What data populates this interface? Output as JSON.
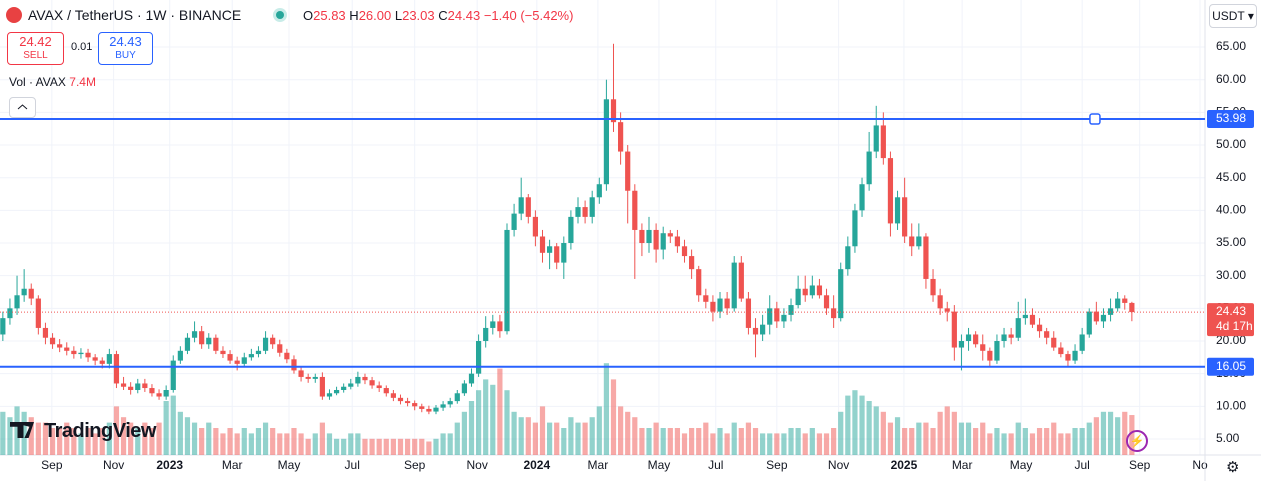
{
  "header": {
    "symbol": "AVAX / TetherUS · 1W · BINANCE",
    "ohlc": [
      {
        "label": "O",
        "value": "25.83"
      },
      {
        "label": "H",
        "value": "26.00"
      },
      {
        "label": "L",
        "value": "23.03"
      },
      {
        "label": "C",
        "value": "24.43"
      }
    ],
    "change": "−1.40 (−5.42%)"
  },
  "trade_panel": {
    "sell_price": "24.42",
    "sell": "SELL",
    "spread": "0.01",
    "buy_price": "24.43",
    "buy": "BUY"
  },
  "currency": "USDT",
  "watermark": "TradingView",
  "chart_data": {
    "type": "candlestick",
    "up_color": "#26a69a",
    "down_color": "#ef5350",
    "volume_legend": {
      "title": "Vol · AVAX",
      "value": "7.4M"
    },
    "open": [
      21,
      23.5,
      25,
      27,
      28,
      26.5,
      22,
      20.5,
      19.5,
      19,
      18.5,
      18,
      18.2,
      17.5,
      17,
      16.5,
      18,
      13.5,
      13,
      12.5,
      13.5,
      12.8,
      12,
      11.5,
      12.5,
      17,
      18.5,
      20.5,
      21.5,
      19.5,
      20.5,
      18.5,
      18,
      17,
      16.5,
      17.5,
      18,
      18.5,
      20.5,
      19.5,
      18.2,
      17.2,
      15.5,
      14.5,
      14.2,
      14.5,
      11.5,
      12,
      12.5,
      13,
      13.5,
      14.5,
      14,
      13.2,
      12.8,
      12,
      11.3,
      10.8,
      10.5,
      10,
      9.6,
      9.2,
      9.8,
      10.3,
      10.8,
      12,
      13.5,
      15,
      20,
      22,
      23,
      21.5,
      37,
      39.5,
      42,
      39,
      36,
      33.5,
      34.5,
      32,
      35,
      39,
      40.5,
      39,
      42,
      44,
      57,
      53.5,
      49,
      43,
      37,
      35,
      37,
      34,
      36.5,
      36,
      34.5,
      33,
      31,
      27,
      26,
      24.5,
      26.5,
      25,
      32,
      26.5,
      22,
      21,
      22.5,
      25,
      23,
      24,
      25.5,
      28,
      27,
      28.5,
      27,
      25,
      23.5,
      31,
      34.5,
      40,
      44,
      49,
      53,
      48,
      38,
      42,
      36,
      34.5,
      36,
      29.5,
      27,
      25,
      24.5,
      19,
      20,
      21,
      19.5,
      18.5,
      17,
      20,
      21,
      20.5,
      23.5,
      24,
      22.5,
      21.5,
      20.5,
      19,
      18,
      17,
      18.5,
      21,
      24.5,
      23,
      24,
      25,
      26.5,
      25.83
    ],
    "high": [
      24.5,
      26.5,
      30,
      31,
      28.8,
      27,
      22.8,
      21.2,
      20.3,
      19.8,
      19.2,
      18.9,
      18.8,
      18,
      17.5,
      18.8,
      18.5,
      14.5,
      13.7,
      14.2,
      14.2,
      13.4,
      12.6,
      13.2,
      17.8,
      19.2,
      21.2,
      23,
      22.3,
      21.2,
      21,
      19.2,
      18.6,
      17.6,
      18.2,
      18.8,
      19.2,
      21.5,
      21,
      20.2,
      18.8,
      17.8,
      16,
      15,
      15,
      15.2,
      12.6,
      13,
      13.5,
      14.2,
      15.3,
      15,
      14.5,
      13.8,
      13.2,
      12.5,
      11.8,
      11.3,
      10.9,
      10.4,
      10.1,
      10.2,
      10.8,
      11.3,
      12.5,
      14,
      15.8,
      21,
      23.8,
      24,
      24,
      38,
      41,
      45,
      42.5,
      40,
      37,
      35.5,
      35,
      36,
      40,
      42,
      41.5,
      43,
      45,
      60,
      65.5,
      55,
      50,
      44,
      38,
      39,
      38,
      37.5,
      37,
      37,
      35.5,
      34,
      31.5,
      28,
      27,
      27.5,
      27.5,
      33,
      33,
      27.5,
      23.5,
      24,
      27,
      26,
      25,
      26.5,
      30,
      30,
      30,
      29.5,
      28,
      27,
      32,
      36,
      41,
      45,
      52,
      56,
      55,
      49,
      43,
      45,
      38,
      38,
      36.5,
      31,
      28,
      26,
      25.5,
      21,
      22,
      21.5,
      21,
      19,
      21,
      22,
      22,
      26,
      26.5,
      25,
      23.5,
      22,
      21.5,
      19.8,
      18.5,
      19.5,
      22,
      25,
      26,
      25,
      26.5,
      27.5,
      27,
      26
    ],
    "low": [
      20,
      22.5,
      24,
      26,
      25.5,
      21,
      19.5,
      18.8,
      18.3,
      17.8,
      17.3,
      17.3,
      16.8,
      16.3,
      15.8,
      15.8,
      12.8,
      12.5,
      11.8,
      12,
      12.2,
      11.5,
      11,
      11,
      12.1,
      16.5,
      18,
      19.8,
      18.8,
      18.8,
      18,
      17.4,
      16.5,
      15.5,
      16,
      17,
      17.5,
      18,
      18.8,
      17.6,
      16.6,
      15,
      13.8,
      13.6,
      13.6,
      11,
      11,
      11.7,
      12.1,
      12.6,
      13,
      13.4,
      12.7,
      12.2,
      11.5,
      10.8,
      10.3,
      10,
      9.4,
      9.1,
      8.8,
      8.8,
      9.3,
      9.8,
      10.4,
      11.6,
      13,
      14.5,
      19,
      21,
      20.5,
      21,
      36,
      38.5,
      38,
      34.5,
      32,
      31,
      31,
      29.5,
      34,
      38,
      38,
      38,
      41,
      43,
      52,
      47,
      38,
      29.5,
      33,
      33.5,
      32,
      32.5,
      35,
      33.5,
      32,
      29.5,
      26,
      25,
      23,
      23.5,
      24,
      24.5,
      26,
      21,
      17.5,
      20,
      21,
      22,
      22,
      23,
      25,
      26,
      26.5,
      26.5,
      24,
      22,
      23,
      30,
      33.5,
      39,
      43,
      48,
      47,
      36,
      37,
      35,
      33,
      34,
      28,
      26,
      24,
      23,
      17,
      15.5,
      18.5,
      19,
      17,
      16,
      16.5,
      19,
      19.5,
      20,
      22.5,
      22,
      20.5,
      19.5,
      18.5,
      17.5,
      16,
      16.5,
      18,
      20.5,
      22.5,
      22,
      23,
      24.5,
      24.8,
      23.03
    ],
    "close": [
      23.5,
      25,
      27,
      28,
      26.5,
      22,
      20.5,
      19.5,
      19,
      18.5,
      18,
      18.2,
      17.5,
      17,
      16.5,
      18,
      13.5,
      13,
      12.5,
      13.5,
      12.8,
      12,
      11.5,
      12.5,
      17,
      18.5,
      20.5,
      21.5,
      19.5,
      20.5,
      18.5,
      18,
      17,
      16.5,
      17.5,
      18,
      18.5,
      20.5,
      19.5,
      18.2,
      17.2,
      15.5,
      14.5,
      14.2,
      14.5,
      11.5,
      12,
      12.5,
      13,
      13.5,
      14.5,
      14,
      13.2,
      12.8,
      12,
      11.3,
      10.8,
      10.5,
      10,
      9.6,
      9.2,
      9.8,
      10.3,
      10.8,
      12,
      13.5,
      15,
      20,
      22,
      23,
      21.5,
      37,
      39.5,
      42,
      39,
      36,
      33.5,
      34.5,
      32,
      35,
      39,
      40.5,
      39,
      42,
      44,
      57,
      53.5,
      49,
      43,
      37,
      35,
      37,
      34,
      36.5,
      36,
      34.5,
      33,
      31,
      27,
      26,
      24.5,
      26.5,
      25,
      32,
      26.5,
      22,
      21,
      22.5,
      25,
      23,
      24,
      25.5,
      28,
      27,
      28.5,
      27,
      25,
      23.5,
      31,
      34.5,
      40,
      44,
      49,
      53,
      48,
      38,
      42,
      36,
      34.5,
      36,
      29.5,
      27,
      25,
      24.5,
      19,
      20,
      21,
      19.5,
      18.5,
      17,
      20,
      21,
      20.5,
      23.5,
      24,
      22.5,
      21.5,
      20.5,
      19,
      18,
      17,
      18.5,
      21,
      24.5,
      23,
      24,
      25,
      26.5,
      25.83,
      24.43
    ],
    "volume": [
      8,
      7,
      9,
      8,
      7,
      6,
      6,
      5,
      5,
      6,
      5,
      4,
      5,
      4,
      5,
      6,
      9,
      7,
      6,
      5,
      6,
      5,
      6,
      10,
      11,
      8,
      7,
      6,
      5,
      6,
      5,
      4,
      5,
      4,
      5,
      4,
      5,
      6,
      5,
      4,
      4,
      5,
      4,
      3,
      4,
      6,
      4,
      3,
      3,
      4,
      4,
      3,
      3,
      3,
      3,
      3,
      3,
      3,
      3,
      3,
      2.5,
      3,
      4,
      4,
      6,
      8,
      10,
      12,
      14,
      13,
      16,
      12,
      8,
      7,
      7,
      6,
      9,
      6,
      6,
      5,
      7,
      6,
      6,
      7,
      9,
      17,
      14,
      9,
      8,
      7,
      5,
      5,
      6,
      5,
      5,
      5,
      4,
      5,
      5,
      6,
      4,
      5,
      4,
      6,
      5,
      6,
      5,
      4,
      4,
      4,
      4,
      5,
      5,
      4,
      5,
      4,
      4,
      5,
      8,
      11,
      12,
      11,
      10,
      9,
      8,
      6,
      7,
      5,
      5,
      6,
      6,
      5,
      8,
      9,
      8,
      6,
      6,
      5,
      6,
      4,
      5,
      4,
      4,
      6,
      5,
      4,
      5,
      5,
      6,
      4,
      4,
      5,
      5,
      6,
      7,
      8,
      8,
      7,
      8,
      7.4
    ],
    "ylim": [
      2.55,
      72.2
    ],
    "yticks": [
      {
        "value": 5,
        "label": "5.00"
      },
      {
        "value": 10,
        "label": "10.00"
      },
      {
        "value": 15,
        "label": "15.00"
      },
      {
        "value": 20,
        "label": "20.00"
      },
      {
        "value": 25,
        "label": "25.00"
      },
      {
        "value": 30,
        "label": "30.00"
      },
      {
        "value": 35,
        "label": "35.00"
      },
      {
        "value": 40,
        "label": "40.00"
      },
      {
        "value": 45,
        "label": "45.00"
      },
      {
        "value": 50,
        "label": "50.00"
      },
      {
        "value": 55,
        "label": "55.00"
      },
      {
        "value": 60,
        "label": "60.00"
      },
      {
        "value": 65,
        "label": "65.00"
      }
    ],
    "xlim": [
      -0.4,
      169.3
    ],
    "xticks": [
      {
        "value": 6.9,
        "label": "Sep"
      },
      {
        "value": 15.6,
        "label": "Nov"
      },
      {
        "value": 23.5,
        "label": "2023"
      },
      {
        "value": 32.3,
        "label": "Mar"
      },
      {
        "value": 40.3,
        "label": "May"
      },
      {
        "value": 49.2,
        "label": "Jul"
      },
      {
        "value": 58,
        "label": "Sep"
      },
      {
        "value": 66.8,
        "label": "Nov"
      },
      {
        "value": 75.2,
        "label": "2024"
      },
      {
        "value": 83.8,
        "label": "Mar"
      },
      {
        "value": 92.4,
        "label": "May"
      },
      {
        "value": 100.4,
        "label": "Jul"
      },
      {
        "value": 109,
        "label": "Sep"
      },
      {
        "value": 117.7,
        "label": "Nov"
      },
      {
        "value": 126.9,
        "label": "2025"
      },
      {
        "value": 135.1,
        "label": "Mar"
      },
      {
        "value": 143.4,
        "label": "May"
      },
      {
        "value": 152,
        "label": "Jul"
      },
      {
        "value": 160.1,
        "label": "Sep"
      },
      {
        "value": 168.6,
        "label": "No"
      }
    ],
    "hlines": [
      {
        "value": 53.98,
        "color": "#2962ff"
      },
      {
        "value": 16.05,
        "color": "#2962ff"
      }
    ],
    "last_price": 24.43,
    "countdown": "4d 17h"
  }
}
